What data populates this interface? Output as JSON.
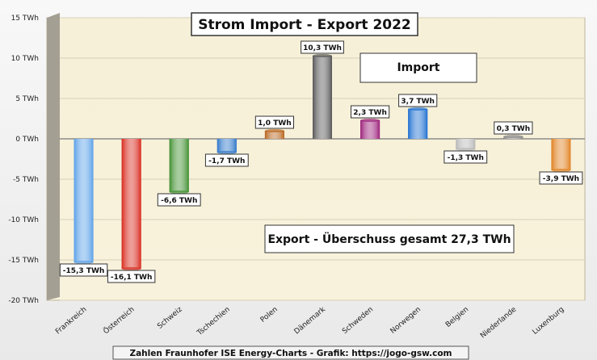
{
  "chart_data": {
    "type": "bar",
    "title": "Strom Import - Export 2022",
    "categories": [
      "Frankreich",
      "Österreich",
      "Schweiz",
      "Tschechien",
      "Polen",
      "Dänemark",
      "Schweden",
      "Norwegen",
      "Belgien",
      "Niederlande",
      "Luxenburg"
    ],
    "values": [
      -15.3,
      -16.1,
      -6.6,
      -1.7,
      1.0,
      10.3,
      2.3,
      3.7,
      -1.3,
      0.3,
      -3.9
    ],
    "data_labels": [
      "-15,3 TWh",
      "-16,1 TWh",
      "-6,6 TWh",
      "-1,7 TWh",
      "1,0 TWh",
      "10,3 TWh",
      "2,3 TWh",
      "3,7 TWh",
      "-1,3 TWh",
      "0,3 TWh",
      "-3,9 TWh"
    ],
    "bar_colors": [
      "#5aa0e8",
      "#d8281c",
      "#3f8f2f",
      "#2f77c9",
      "#b8651e",
      "#555555",
      "#9b1f7a",
      "#1e6fd0",
      "#b8b8b8",
      "#8a8a8a",
      "#e0801f"
    ],
    "yticks": [
      -20,
      -15,
      -10,
      -5,
      0,
      5,
      10,
      15
    ],
    "ytick_labels": [
      "-20 TWh",
      "-15 TWh",
      "-10 TWh",
      "-5 TWh",
      "0 TWh",
      "5 TWh",
      "10 TWh",
      "15 TWh"
    ],
    "ylim": [
      -20,
      15
    ],
    "grid": true,
    "annotations": {
      "import": "Import",
      "export": "Export - Überschuss gesamt 27,3 TWh"
    },
    "source": "Zahlen Fraunhofer ISE  Energy-Charts - Grafik: https://jogo-gsw.com"
  }
}
